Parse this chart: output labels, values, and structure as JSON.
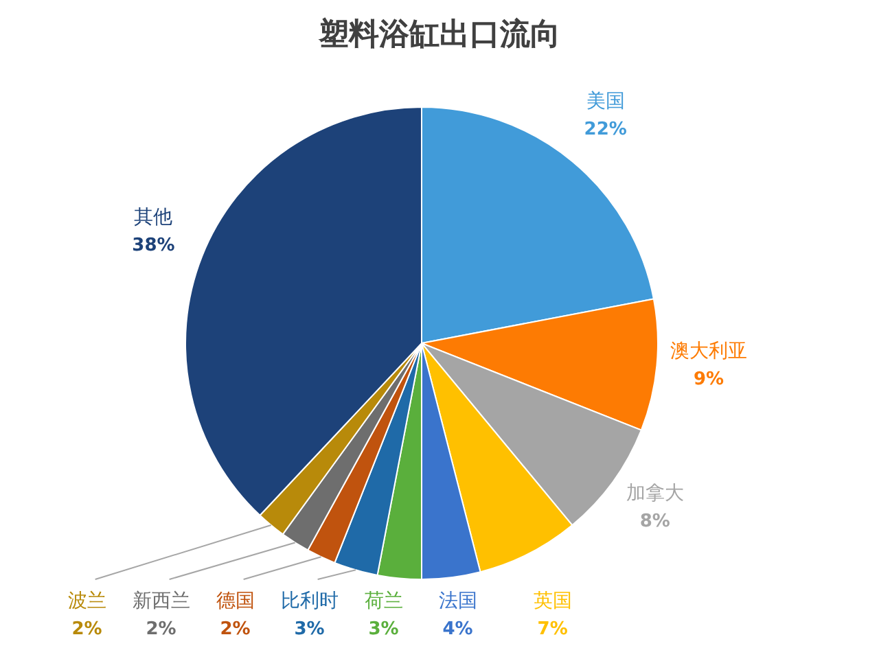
{
  "chart_data": {
    "type": "pie",
    "title": "塑料浴缸出口流向",
    "categories": [
      "美国",
      "澳大利亚",
      "加拿大",
      "英国",
      "法国",
      "荷兰",
      "比利时",
      "德国",
      "新西兰",
      "波兰",
      "其他"
    ],
    "values": [
      22,
      9,
      8,
      7,
      4,
      3,
      3,
      2,
      2,
      2,
      38
    ],
    "value_labels": [
      "22%",
      "9%",
      "8%",
      "7%",
      "4%",
      "3%",
      "3%",
      "2%",
      "2%",
      "2%",
      "38%"
    ],
    "colors": [
      "#419bd9",
      "#fd7b03",
      "#a5a5a5",
      "#ffc000",
      "#3a74cc",
      "#5aaf3c",
      "#1f6aa8",
      "#c0530e",
      "#6e6e6e",
      "#b88a0a",
      "#1d4279"
    ]
  }
}
